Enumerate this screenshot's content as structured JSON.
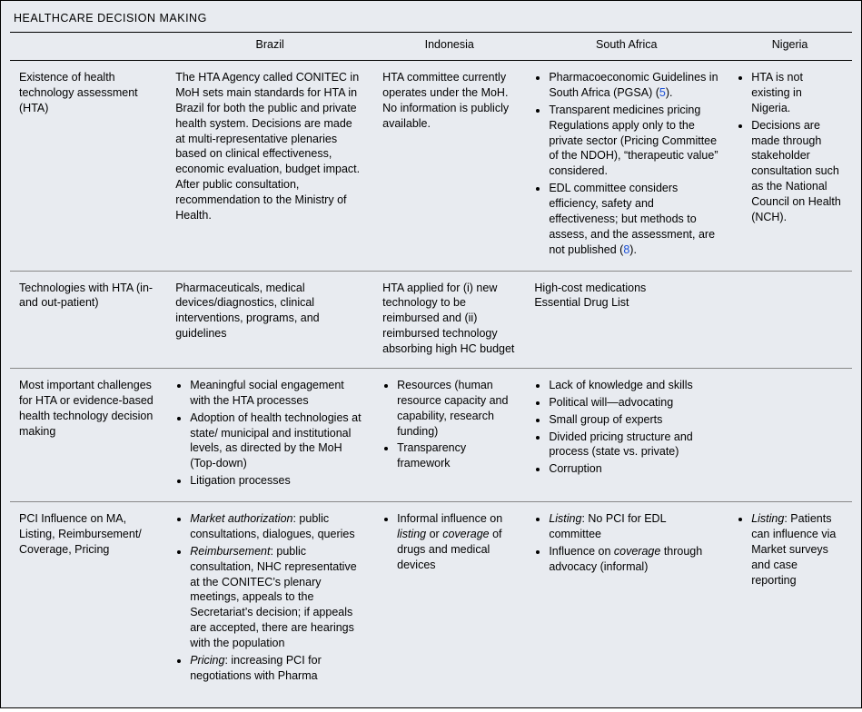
{
  "title": "HEALTHCARE DECISION MAKING",
  "columns": {
    "stub": "",
    "brazil": "Brazil",
    "indonesia": "Indonesia",
    "south_africa": "South Africa",
    "nigeria": "Nigeria"
  },
  "rows": {
    "r1": {
      "label": "Existence of health technology assessment (HTA)",
      "brazil": "The HTA Agency called CONITEC in MoH sets main standards for HTA in Brazil for both the public and private health system. Decisions are made at multi-representative plenaries based on clinical effectiveness, economic evaluation, budget impact. After public consultation, recommendation to the Ministry of Health.",
      "indonesia": "HTA committee currently operates under the MoH. No information is publicly available.",
      "sa": {
        "b1a": "Pharmacoeconomic Guidelines in South Africa (PGSA) (",
        "b1ref": "5",
        "b1b": ").",
        "b2": "Transparent medicines pricing Regulations apply only to the private sector (Pricing Committee of the NDOH), “therapeutic value” considered.",
        "b3a": "EDL committee considers efficiency, safety and effectiveness; but methods to assess, and the assessment, are not published (",
        "b3ref": "8",
        "b3b": ")."
      },
      "nigeria": {
        "b1": "HTA is not existing in Nigeria.",
        "b2": "Decisions are made through stakeholder consultation such as the National Council on Health (NCH)."
      }
    },
    "r2": {
      "label": "Technologies with HTA (in-and out-patient)",
      "brazil": "Pharmaceuticals, medical devices/diagnostics, clinical interventions, programs, and guidelines",
      "indonesia": "HTA applied for (i) new technology to be reimbursed and (ii) reimbursed technology absorbing high HC budget",
      "sa_l1": "High-cost medications",
      "sa_l2": "Essential Drug List",
      "nigeria": ""
    },
    "r3": {
      "label": "Most important challenges for HTA or evidence-based health technology decision making",
      "brazil": {
        "b1": "Meaningful social engagement with the HTA processes",
        "b2": "Adoption of health technologies at state/ municipal and institutional levels, as directed by the MoH (Top-down)",
        "b3": "Litigation processes"
      },
      "indonesia": {
        "b1": "Resources (human resource capacity and capability, research funding)",
        "b2": "Transparency framework"
      },
      "sa": {
        "b1": "Lack of knowledge and skills",
        "b2": "Political will—advocating",
        "b3": "Small group of experts",
        "b4": "Divided pricing structure and process (state vs. private)",
        "b5": "Corruption"
      },
      "nigeria": ""
    },
    "r4": {
      "label": "PCI Influence on MA, Listing, Reimbursement/ Coverage, Pricing",
      "brazil": {
        "b1_i": "Market authorization",
        "b1_t": ": public consultations, dialogues, queries",
        "b2_i": "Reimbursement",
        "b2_t": ": public consultation, NHC representative at the CONITEC’s plenary meetings, appeals to the Secretariat’s decision; if appeals are accepted, there are hearings with the population",
        "b3_i": "Pricing",
        "b3_t": ": increasing PCI for negotiations with Pharma"
      },
      "indonesia": {
        "b1_a": "Informal influence on ",
        "b1_i1": "listing",
        "b1_mid": " or ",
        "b1_i2": "coverage",
        "b1_b": " of drugs and medical devices"
      },
      "sa": {
        "b1_i": "Listing",
        "b1_t": ": No PCI for EDL committee",
        "b2_a": "Influence on ",
        "b2_i": "coverage",
        "b2_b": " through advocacy (informal)"
      },
      "nigeria": {
        "b1_i": "Listing",
        "b1_t": ": Patients can influence via Market surveys and case reporting"
      }
    }
  }
}
